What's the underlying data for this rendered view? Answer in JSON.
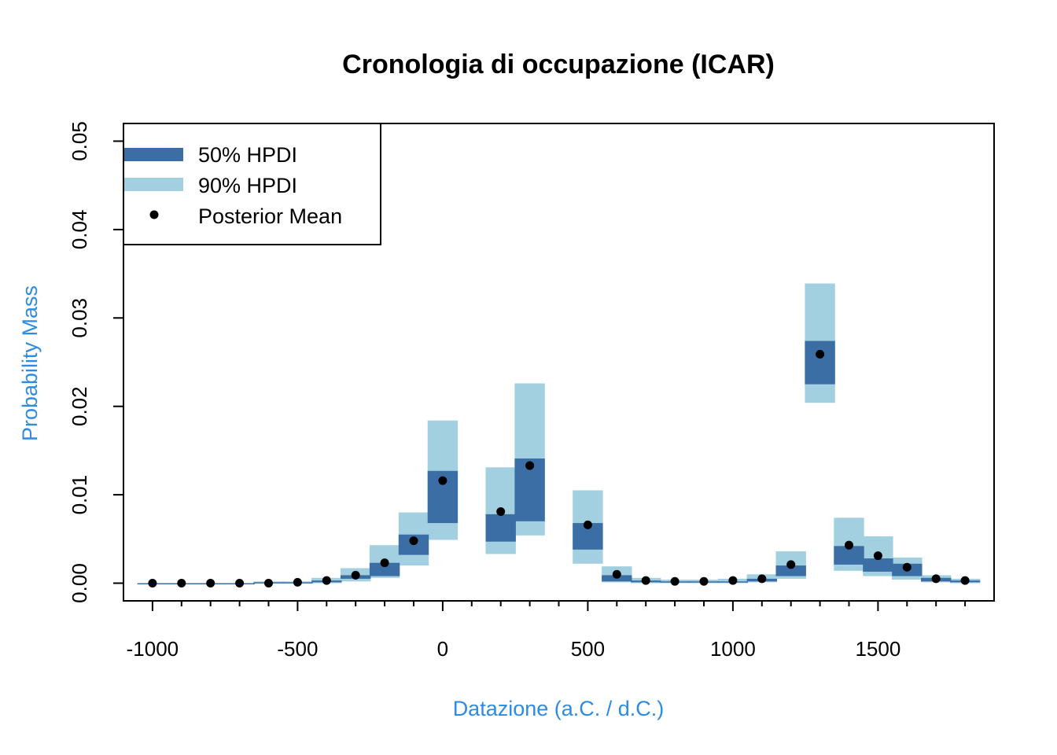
{
  "colors": {
    "hpdi50": "#3a6ea5",
    "hpdi90": "#a2d0e1",
    "mean": "#000000",
    "axis_title": "#2d8be0"
  },
  "chart_data": {
    "type": "interval",
    "title": "Cronologia di occupazione (ICAR)",
    "xlabel": "Datazione (a.C. / d.C.)",
    "ylabel": "Probability Mass",
    "xlim": [
      -1100,
      1900
    ],
    "ylim": [
      -0.002,
      0.052
    ],
    "x_ticks": [
      -1000,
      -500,
      0,
      500,
      1000,
      1500
    ],
    "x_tick_labels": [
      "-1000",
      "-500",
      "0",
      "500",
      "1000",
      "1500"
    ],
    "y_ticks": [
      0.0,
      0.01,
      0.02,
      0.03,
      0.04,
      0.05
    ],
    "y_tick_labels": [
      "0.00",
      "0.01",
      "0.02",
      "0.03",
      "0.04",
      "0.05"
    ],
    "bin_width": 100,
    "legend": {
      "position": "top-left",
      "entries": [
        "50% HPDI",
        "90% HPDI",
        "Posterior Mean"
      ]
    },
    "x": [
      -1000,
      -900,
      -800,
      -700,
      -600,
      -500,
      -400,
      -300,
      -200,
      -100,
      0,
      100,
      200,
      300,
      400,
      500,
      600,
      700,
      800,
      900,
      1000,
      1100,
      1200,
      1300,
      1400,
      1500,
      1600,
      1700,
      1800
    ],
    "mean": [
      0.0,
      0.0,
      0.0,
      0.0,
      0.0,
      0.0001,
      0.0003,
      0.0009,
      0.0023,
      0.0048,
      0.0116,
      null,
      0.0081,
      0.0133,
      null,
      0.0066,
      0.001,
      0.0003,
      0.0002,
      0.0002,
      0.0003,
      0.0005,
      0.0021,
      0.0259,
      0.0043,
      0.0031,
      0.0018,
      0.0005,
      0.0003
    ],
    "hpdi50": [
      [
        0.0,
        0.0
      ],
      [
        0.0,
        0.0
      ],
      [
        0.0,
        0.0
      ],
      [
        0.0,
        0.0
      ],
      [
        0.0,
        0.0001
      ],
      [
        0.0,
        0.0001
      ],
      [
        0.0001,
        0.0003
      ],
      [
        0.0005,
        0.0009
      ],
      [
        0.0008,
        0.0023
      ],
      [
        0.0032,
        0.0055
      ],
      [
        0.0068,
        0.0127
      ],
      null,
      [
        0.0047,
        0.0078
      ],
      [
        0.007,
        0.0141
      ],
      null,
      [
        0.0038,
        0.0068
      ],
      [
        0.0002,
        0.0009
      ],
      [
        0.0001,
        0.0003
      ],
      [
        0.0001,
        0.0002
      ],
      [
        0.0001,
        0.0002
      ],
      [
        0.0001,
        0.0002
      ],
      [
        0.0002,
        0.0005
      ],
      [
        0.0008,
        0.002
      ],
      [
        0.0225,
        0.0274
      ],
      [
        0.0021,
        0.0042
      ],
      [
        0.0013,
        0.0028
      ],
      [
        0.0008,
        0.0022
      ],
      [
        0.0002,
        0.0006
      ],
      [
        0.0001,
        0.0003
      ]
    ],
    "hpdi90": [
      [
        0.0,
        0.0
      ],
      [
        0.0,
        0.0
      ],
      [
        0.0,
        0.0
      ],
      [
        0.0,
        0.0
      ],
      [
        0.0,
        0.0002
      ],
      [
        0.0,
        0.0002
      ],
      [
        0.0,
        0.0006
      ],
      [
        0.0002,
        0.0017
      ],
      [
        0.0006,
        0.0043
      ],
      [
        0.002,
        0.008
      ],
      [
        0.0049,
        0.0184
      ],
      null,
      [
        0.0033,
        0.0131
      ],
      [
        0.0054,
        0.0226
      ],
      null,
      [
        0.0022,
        0.0105
      ],
      [
        0.0001,
        0.0019
      ],
      [
        0.0,
        0.0006
      ],
      [
        0.0,
        0.0004
      ],
      [
        0.0,
        0.0004
      ],
      [
        0.0,
        0.0005
      ],
      [
        0.0001,
        0.001
      ],
      [
        0.0005,
        0.0036
      ],
      [
        0.0204,
        0.0339
      ],
      [
        0.0014,
        0.0074
      ],
      [
        0.0008,
        0.0053
      ],
      [
        0.0004,
        0.0029
      ],
      [
        0.0001,
        0.0009
      ],
      [
        0.0,
        0.0005
      ]
    ]
  }
}
